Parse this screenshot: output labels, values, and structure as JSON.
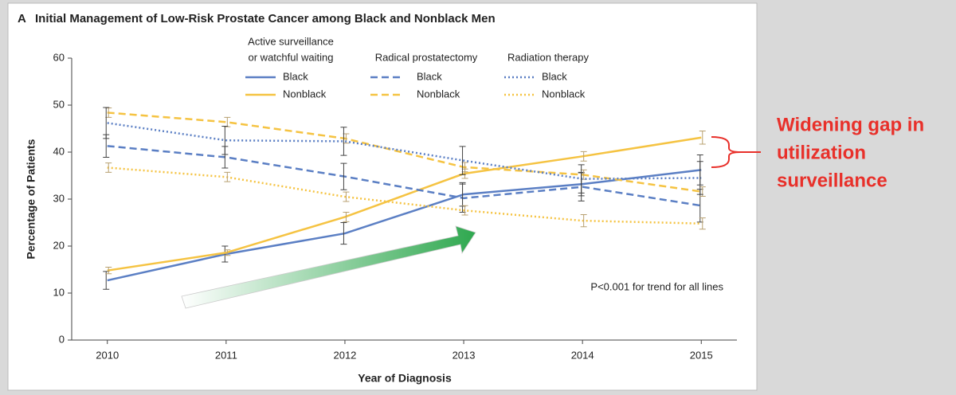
{
  "chart_data": {
    "type": "line",
    "panel_label": "A",
    "title": "Initial Management of Low-Risk Prostate Cancer among Black and Nonblack Men",
    "x_label": "Year of Diagnosis",
    "y_label": "Percentage of Patients",
    "x": [
      2010,
      2011,
      2012,
      2013,
      2014,
      2015
    ],
    "xlim": [
      2009.7,
      2015.3
    ],
    "xticks": [
      2010,
      2011,
      2012,
      2013,
      2014,
      2015
    ],
    "ylim": [
      0,
      60
    ],
    "yticks": [
      0,
      10,
      20,
      30,
      40,
      50,
      60
    ],
    "groups": [
      {
        "title_lines": [
          "Active surveillance",
          "or watchful waiting"
        ],
        "dash": "solid",
        "series": [
          {
            "name": "Black",
            "color": "#5b7fc4",
            "values": [
              12.7,
              18.3,
              22.7,
              31.0,
              33.2,
              36.2
            ],
            "errors": [
              1.9,
              1.7,
              2.3,
              2.5,
              2.5,
              3.2
            ]
          },
          {
            "name": "Nonblack",
            "color": "#f5c342",
            "values": [
              14.8,
              18.6,
              26.2,
              35.4,
              39.1,
              43.1
            ],
            "errors": [
              0.7,
              0.6,
              1.0,
              1.0,
              1.0,
              1.4
            ]
          }
        ]
      },
      {
        "title_lines": [
          "Radical prostatectomy"
        ],
        "dash": "dashed",
        "series": [
          {
            "name": "Black",
            "color": "#5b7fc4",
            "values": [
              41.3,
              38.9,
              34.8,
              30.2,
              32.6,
              28.6
            ],
            "errors": [
              2.4,
              2.3,
              2.8,
              3.0,
              3.0,
              3.5
            ]
          },
          {
            "name": "Nonblack",
            "color": "#f5c342",
            "values": [
              48.4,
              46.4,
              42.9,
              36.8,
              35.2,
              31.6
            ],
            "errors": [
              1.0,
              1.0,
              1.0,
              1.0,
              1.0,
              1.0
            ]
          }
        ]
      },
      {
        "title_lines": [
          "Radiation therapy"
        ],
        "dash": "dotted",
        "series": [
          {
            "name": "Black",
            "color": "#5b7fc4",
            "values": [
              46.2,
              42.5,
              42.3,
              38.2,
              34.3,
              34.5
            ],
            "errors": [
              3.3,
              3.0,
              3.0,
              3.0,
              3.0,
              3.5
            ]
          },
          {
            "name": "Nonblack",
            "color": "#f5c342",
            "values": [
              36.7,
              34.7,
              30.5,
              27.6,
              25.4,
              24.8
            ],
            "errors": [
              1.0,
              1.0,
              1.0,
              1.0,
              1.3,
              1.2
            ]
          }
        ]
      }
    ],
    "annotation": "P<0.001 for trend for all lines",
    "callout_lines": [
      "Widening gap in",
      "utilization",
      "surveillance"
    ],
    "callout_color": "#e8302a"
  }
}
